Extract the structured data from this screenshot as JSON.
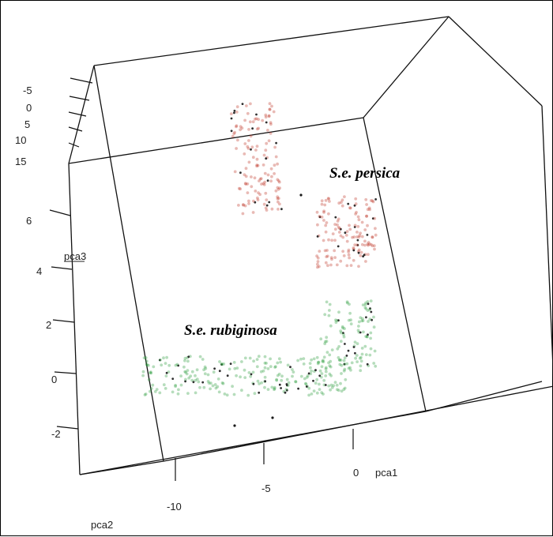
{
  "chart_data": {
    "type": "scatter",
    "projection": "3d",
    "title": "",
    "axes": {
      "pca1": {
        "label": "pca1",
        "ticks": [
          "-10",
          "-5",
          "0"
        ],
        "range": [
          -12,
          3
        ]
      },
      "pca2": {
        "label": "pca2",
        "ticks": [
          "-5",
          "0",
          "5",
          "10",
          "15"
        ],
        "range": [
          -7,
          16
        ]
      },
      "pca3": {
        "label": "pca3",
        "ticks": [
          "6",
          "4",
          "2",
          "0",
          "-2"
        ],
        "range": [
          -3,
          7
        ]
      }
    },
    "grid": false,
    "legend": "none",
    "annotations": [
      {
        "text": "S.e. persica",
        "series": "S.e. persica"
      },
      {
        "text": "S.e. rubiginosa",
        "series": "S.e. rubiginosa"
      }
    ],
    "series": [
      {
        "name": "S.e. persica",
        "color": "#c0392b",
        "clusters": [
          {
            "pca1_range": [
              -6,
              -4
            ],
            "pca3_range": [
              4.8,
              7.2
            ],
            "points": 140
          },
          {
            "pca1_range": [
              -1.5,
              0.5
            ],
            "pca3_range": [
              4.0,
              5.5
            ],
            "points": 150
          }
        ]
      },
      {
        "name": "S.e. rubiginosa",
        "color": "#2e9e3e",
        "clusters": [
          {
            "pca1_range": [
              -11.5,
              -4
            ],
            "pca3_range": [
              -0.8,
              0.6
            ],
            "points": 260
          },
          {
            "pca1_range": [
              -4,
              0.5
            ],
            "pca3_range": [
              0.0,
              2.3
            ],
            "points": 110
          }
        ]
      }
    ]
  }
}
